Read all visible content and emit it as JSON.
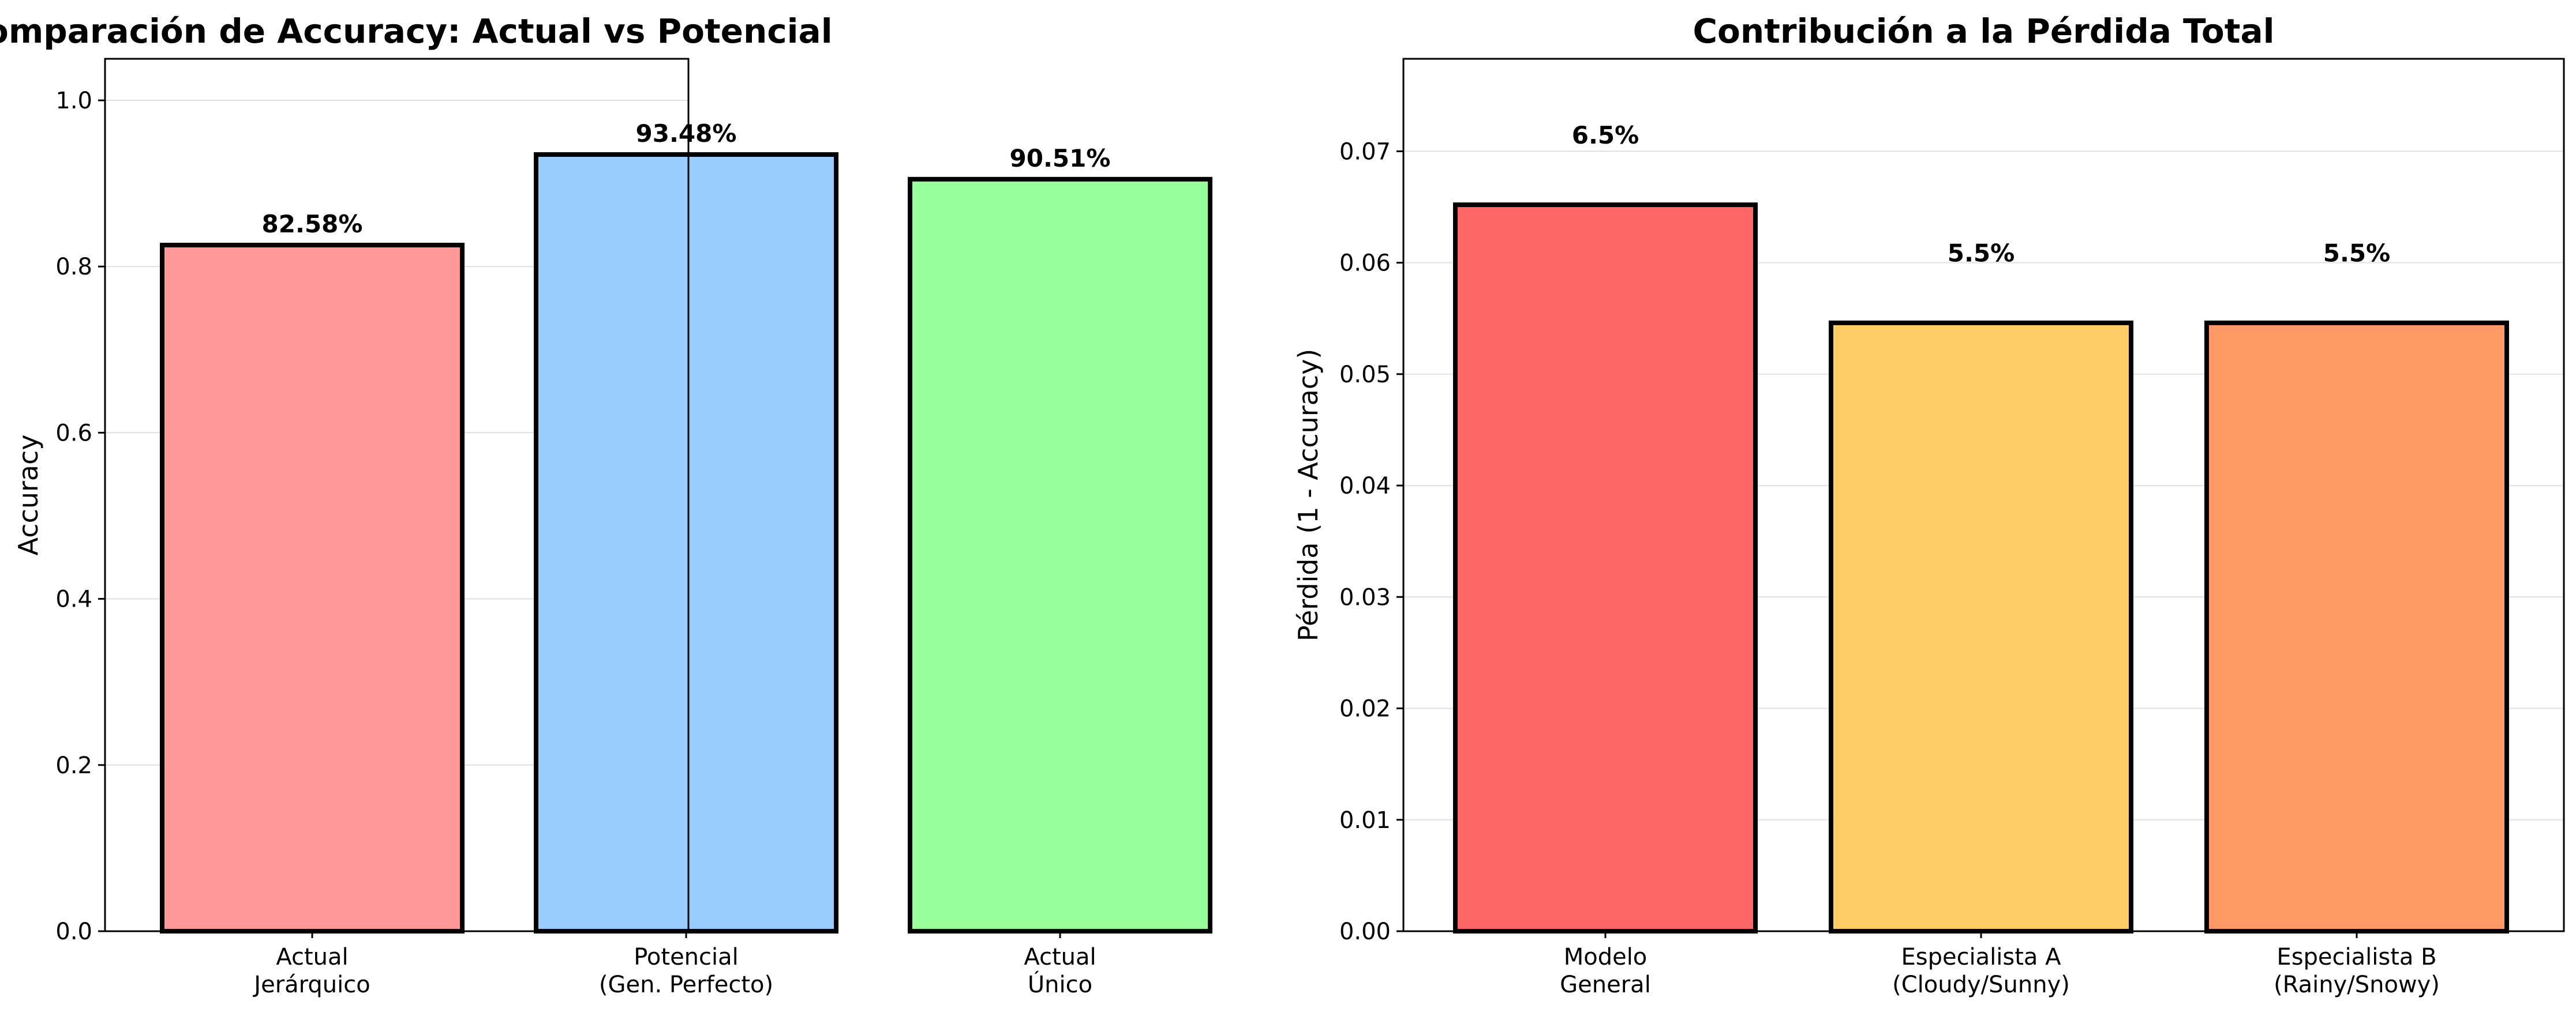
{
  "chart_data": [
    {
      "type": "bar",
      "title": "Comparación de Accuracy: Actual vs Potencial",
      "xlabel": "",
      "ylabel": "Accuracy",
      "ylim": [
        0,
        1.05
      ],
      "yticks": [
        "0.0",
        "0.2",
        "0.4",
        "0.6",
        "0.8",
        "1.0"
      ],
      "ytick_values": [
        0,
        0.2,
        0.4,
        0.6,
        0.8,
        1.0
      ],
      "grid": true,
      "categories": [
        [
          "Actual",
          "Jerárquico"
        ],
        [
          "Potencial",
          "(Gen. Perfecto)"
        ],
        [
          "Actual",
          "Único"
        ]
      ],
      "values": [
        0.8258,
        0.9348,
        0.9051
      ],
      "data_labels": [
        "82.58%",
        "93.48%",
        "90.51%"
      ],
      "colors": [
        "#ff9999",
        "#99ccff",
        "#99ff99"
      ]
    },
    {
      "type": "bar",
      "title": "Contribución a la Pérdida Total",
      "xlabel": "",
      "ylabel": "Pérdida (1 - Accuracy)",
      "ylim": [
        0,
        0.0783
      ],
      "yticks": [
        "0.00",
        "0.01",
        "0.02",
        "0.03",
        "0.04",
        "0.05",
        "0.06",
        "0.07"
      ],
      "ytick_values": [
        0,
        0.01,
        0.02,
        0.03,
        0.04,
        0.05,
        0.06,
        0.07
      ],
      "grid": true,
      "categories": [
        [
          "Modelo",
          "General"
        ],
        [
          "Especialista A",
          "(Cloudy/Sunny)"
        ],
        [
          "Especialista B",
          "(Rainy/Snowy)"
        ]
      ],
      "values": [
        0.0652,
        0.0546,
        0.0546
      ],
      "data_labels": [
        "6.5%",
        "5.5%",
        "5.5%"
      ],
      "label_offset": 0.0055,
      "colors": [
        "#ff6666",
        "#ffcc66",
        "#ff9966"
      ]
    }
  ]
}
